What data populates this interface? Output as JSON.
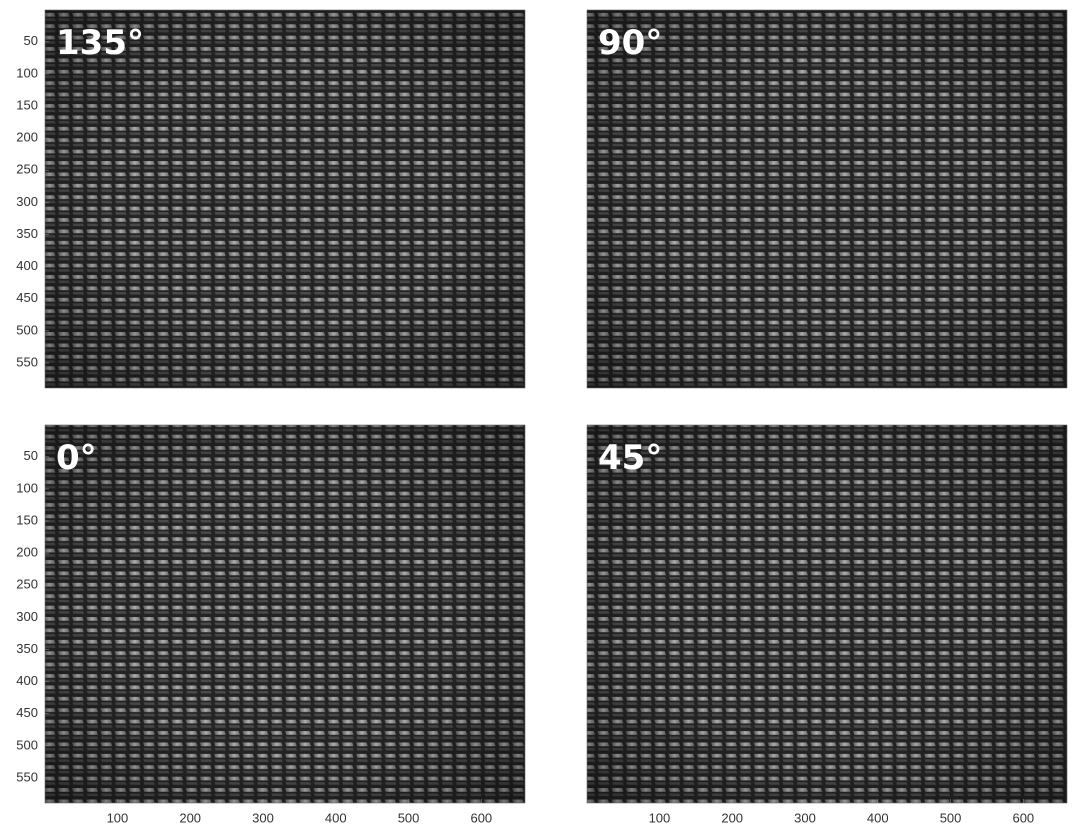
{
  "panels": [
    {
      "label": "135°",
      "xlim": [
        0.5,
        660
      ],
      "ylim": [
        0.5,
        589
      ],
      "yticks": [
        50,
        100,
        150,
        200,
        250,
        300,
        350,
        400,
        450,
        500,
        550
      ]
    },
    {
      "label": "90°",
      "xlim": [
        0.5,
        660
      ],
      "ylim": [
        0.5,
        589
      ]
    },
    {
      "label": "0°",
      "xlim": [
        0.5,
        660
      ],
      "ylim": [
        0.5,
        589
      ],
      "yticks": [
        50,
        100,
        150,
        200,
        250,
        300,
        350,
        400,
        450,
        500,
        550
      ],
      "xticks": [
        100,
        200,
        300,
        400,
        500,
        600
      ]
    },
    {
      "label": "45°",
      "xlim": [
        0.5,
        660
      ],
      "ylim": [
        0.5,
        589
      ],
      "xticks": [
        100,
        200,
        300,
        400,
        500,
        600
      ]
    }
  ]
}
